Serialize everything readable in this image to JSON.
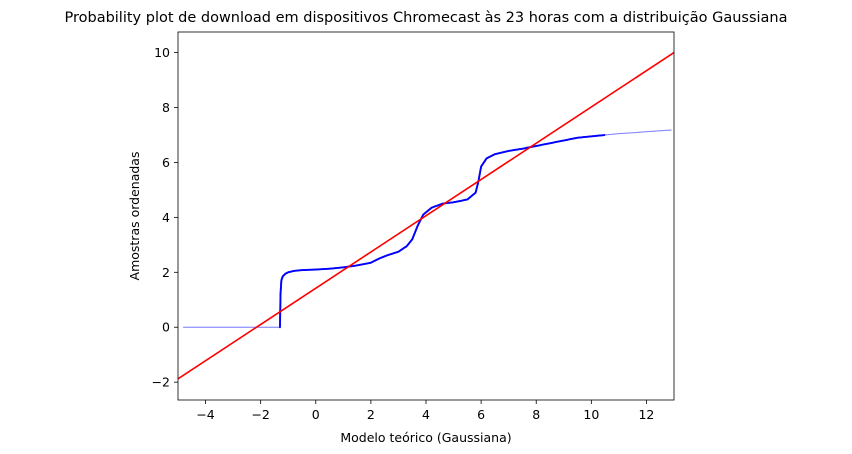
{
  "chart_data": {
    "type": "scatter",
    "title": "Probability plot de download em dispositivos Chromecast às 23 horas com a distribuição Gaussiana",
    "xlabel": "Modelo teórico (Gaussiana)",
    "ylabel": "Amostras ordenadas",
    "xlim": [
      -5.0,
      13.0
    ],
    "ylim": [
      -2.65,
      10.75
    ],
    "xticks": [
      -4,
      -2,
      0,
      2,
      4,
      6,
      8,
      10,
      12
    ],
    "yticks": [
      -2,
      0,
      2,
      4,
      6,
      8,
      10
    ],
    "grid": false,
    "colors": {
      "points": "#0000ff",
      "fit_line": "#ff0000"
    },
    "fit_line": {
      "slope": 0.66,
      "intercept": 1.42
    },
    "ordered_samples": {
      "x": [
        -4.8,
        -4.0,
        -3.0,
        -2.2,
        -1.6,
        -1.3,
        -1.28,
        -1.25,
        -1.2,
        -1.1,
        -1.0,
        -0.8,
        -0.5,
        0.0,
        0.5,
        1.0,
        1.5,
        2.0,
        2.3,
        2.6,
        3.0,
        3.3,
        3.5,
        3.7,
        3.9,
        4.2,
        4.6,
        5.0,
        5.5,
        5.8,
        5.9,
        6.0,
        6.2,
        6.5,
        7.0,
        7.5,
        8.0,
        8.5,
        9.0,
        9.5,
        10.0,
        10.5,
        11.0,
        11.5,
        12.0,
        12.9
      ],
      "y": [
        0.0,
        0.0,
        0.0,
        0.0,
        0.0,
        0.0,
        1.2,
        1.7,
        1.85,
        1.95,
        2.0,
        2.05,
        2.08,
        2.1,
        2.13,
        2.18,
        2.25,
        2.35,
        2.5,
        2.62,
        2.75,
        2.95,
        3.2,
        3.7,
        4.1,
        4.35,
        4.5,
        4.55,
        4.65,
        4.9,
        5.3,
        5.85,
        6.15,
        6.3,
        6.42,
        6.5,
        6.6,
        6.7,
        6.8,
        6.9,
        6.95,
        7.0,
        7.05,
        7.08,
        7.12,
        7.18
      ]
    }
  }
}
